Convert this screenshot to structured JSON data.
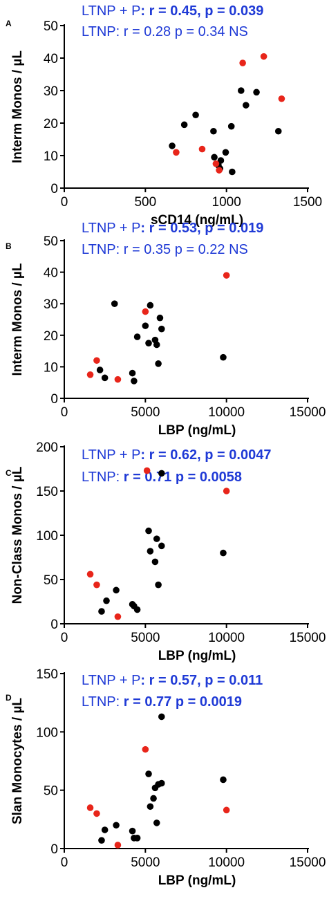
{
  "colors": {
    "lthp": "#000000",
    "progressor": "#e8251a",
    "stat_text": "#1f3ad6",
    "axis": "#000000"
  },
  "chart_data": [
    {
      "type": "scatter",
      "panel": "A",
      "xlabel": "sCD14 (ng/mL)",
      "ylabel": "Interm Monos / µL",
      "xlim": [
        0,
        1500
      ],
      "ylim": [
        0,
        50
      ],
      "xticks": [
        "0",
        "500",
        "1000",
        "1500"
      ],
      "yticks": [
        "0",
        "10",
        "20",
        "30",
        "40",
        "50"
      ],
      "xtick_values": [
        0,
        500,
        1000,
        1500
      ],
      "ytick_values": [
        0,
        10,
        20,
        30,
        40,
        50
      ],
      "annotations": [
        {
          "plain": "LTNP + P",
          "rest": ": r = 0.45, p = 0.039",
          "rest_bold": true
        },
        {
          "plain": "LTNP: r = 0.28 p = 0.34 NS",
          "rest": "",
          "rest_bold": false
        }
      ],
      "series": [
        {
          "color": "#000000",
          "points": [
            [
              665,
              13
            ],
            [
              740,
              19.5
            ],
            [
              810,
              22.5
            ],
            [
              920,
              17.5
            ],
            [
              925,
              9.5
            ],
            [
              950,
              7
            ],
            [
              960,
              6
            ],
            [
              965,
              8.5
            ],
            [
              995,
              11
            ],
            [
              1030,
              19
            ],
            [
              1035,
              5
            ],
            [
              1090,
              30
            ],
            [
              1120,
              25.5
            ],
            [
              1185,
              29.5
            ],
            [
              1320,
              17.5
            ]
          ]
        },
        {
          "color": "#e8251a",
          "points": [
            [
              690,
              11
            ],
            [
              850,
              12
            ],
            [
              935,
              7.5
            ],
            [
              955,
              5.5
            ],
            [
              1100,
              38.5
            ],
            [
              1230,
              40.5
            ],
            [
              1340,
              27.5
            ]
          ]
        }
      ]
    },
    {
      "type": "scatter",
      "panel": "B",
      "xlabel": "LBP (ng/mL)",
      "ylabel": "Interm Monos / µL",
      "xlim": [
        0,
        15000
      ],
      "ylim": [
        0,
        50
      ],
      "xticks": [
        "0",
        "5000",
        "10000",
        "15000"
      ],
      "yticks": [
        "0",
        "10",
        "20",
        "30",
        "40",
        "50"
      ],
      "xtick_values": [
        0,
        5000,
        10000,
        15000
      ],
      "ytick_values": [
        0,
        10,
        20,
        30,
        40,
        50
      ],
      "annotations": [
        {
          "plain": "LTNP + P",
          "rest": ": r = 0.53, p = 0.019",
          "rest_bold": true
        },
        {
          "plain": "LTNP: r = 0.35 p = 0.22 NS",
          "rest": "",
          "rest_bold": false
        }
      ],
      "series": [
        {
          "color": "#000000",
          "points": [
            [
              2200,
              9
            ],
            [
              2500,
              6.5
            ],
            [
              3100,
              30
            ],
            [
              4200,
              8
            ],
            [
              4300,
              5.5
            ],
            [
              4500,
              19.5
            ],
            [
              5000,
              23
            ],
            [
              5200,
              17.5
            ],
            [
              5300,
              29.5
            ],
            [
              5600,
              18.5
            ],
            [
              5700,
              17
            ],
            [
              5800,
              11
            ],
            [
              5900,
              25.5
            ],
            [
              6000,
              22
            ],
            [
              9800,
              13
            ]
          ]
        },
        {
          "color": "#e8251a",
          "points": [
            [
              1600,
              7.5
            ],
            [
              2000,
              12
            ],
            [
              3300,
              6
            ],
            [
              5000,
              27.5
            ],
            [
              10000,
              39
            ]
          ]
        }
      ]
    },
    {
      "type": "scatter",
      "panel": "C",
      "xlabel": "LBP (ng/mL)",
      "ylabel": "Non-Class Monos / µL",
      "xlim": [
        0,
        15000
      ],
      "ylim": [
        0,
        200
      ],
      "xticks": [
        "0",
        "5000",
        "10000",
        "15000"
      ],
      "yticks": [
        "0",
        "50",
        "100",
        "150",
        "200"
      ],
      "xtick_values": [
        0,
        5000,
        10000,
        15000
      ],
      "ytick_values": [
        0,
        50,
        100,
        150,
        200
      ],
      "annotations": [
        {
          "plain": "LTNP + P",
          "rest": ": r = 0.62, p = 0.0047",
          "rest_bold": true
        },
        {
          "plain": "LTNP: ",
          "rest": "r = 0.71 p = 0.0058",
          "rest_bold": true
        }
      ],
      "series": [
        {
          "color": "#000000",
          "points": [
            [
              2300,
              14
            ],
            [
              2600,
              26
            ],
            [
              3200,
              38
            ],
            [
              4200,
              22
            ],
            [
              4300,
              20
            ],
            [
              4500,
              16
            ],
            [
              5200,
              105
            ],
            [
              5300,
              82
            ],
            [
              5600,
              70
            ],
            [
              5700,
              96
            ],
            [
              5800,
              44
            ],
            [
              6000,
              88
            ],
            [
              6000,
              170
            ],
            [
              9800,
              80
            ]
          ]
        },
        {
          "color": "#e8251a",
          "points": [
            [
              1600,
              56
            ],
            [
              2000,
              44
            ],
            [
              3300,
              8
            ],
            [
              5100,
              173
            ],
            [
              10000,
              150
            ]
          ]
        }
      ]
    },
    {
      "type": "scatter",
      "panel": "D",
      "xlabel": "LBP (ng/mL)",
      "ylabel": "Slan Monocytes / µL",
      "xlim": [
        0,
        15000
      ],
      "ylim": [
        0,
        150
      ],
      "xticks": [
        "0",
        "5000",
        "10000",
        "15000"
      ],
      "yticks": [
        "0",
        "50",
        "100",
        "150"
      ],
      "xtick_values": [
        0,
        5000,
        10000,
        15000
      ],
      "ytick_values": [
        0,
        50,
        100,
        150
      ],
      "annotations": [
        {
          "plain": "LTNP + P",
          "rest": ": r = 0.57, p = 0.011",
          "rest_bold": true
        },
        {
          "plain": "LTNP: ",
          "rest": "r = 0.77 p = 0.0019",
          "rest_bold": true
        }
      ],
      "series": [
        {
          "color": "#000000",
          "points": [
            [
              2300,
              7
            ],
            [
              2500,
              16
            ],
            [
              3200,
              20
            ],
            [
              4200,
              15
            ],
            [
              4300,
              9
            ],
            [
              4500,
              9
            ],
            [
              5200,
              64
            ],
            [
              5300,
              36
            ],
            [
              5500,
              43
            ],
            [
              5600,
              52
            ],
            [
              5700,
              22
            ],
            [
              5800,
              55
            ],
            [
              6000,
              56
            ],
            [
              6000,
              113
            ],
            [
              9800,
              59
            ]
          ]
        },
        {
          "color": "#e8251a",
          "points": [
            [
              1600,
              35
            ],
            [
              2000,
              30
            ],
            [
              3300,
              3
            ],
            [
              5000,
              85
            ],
            [
              10000,
              33
            ]
          ]
        }
      ]
    }
  ]
}
